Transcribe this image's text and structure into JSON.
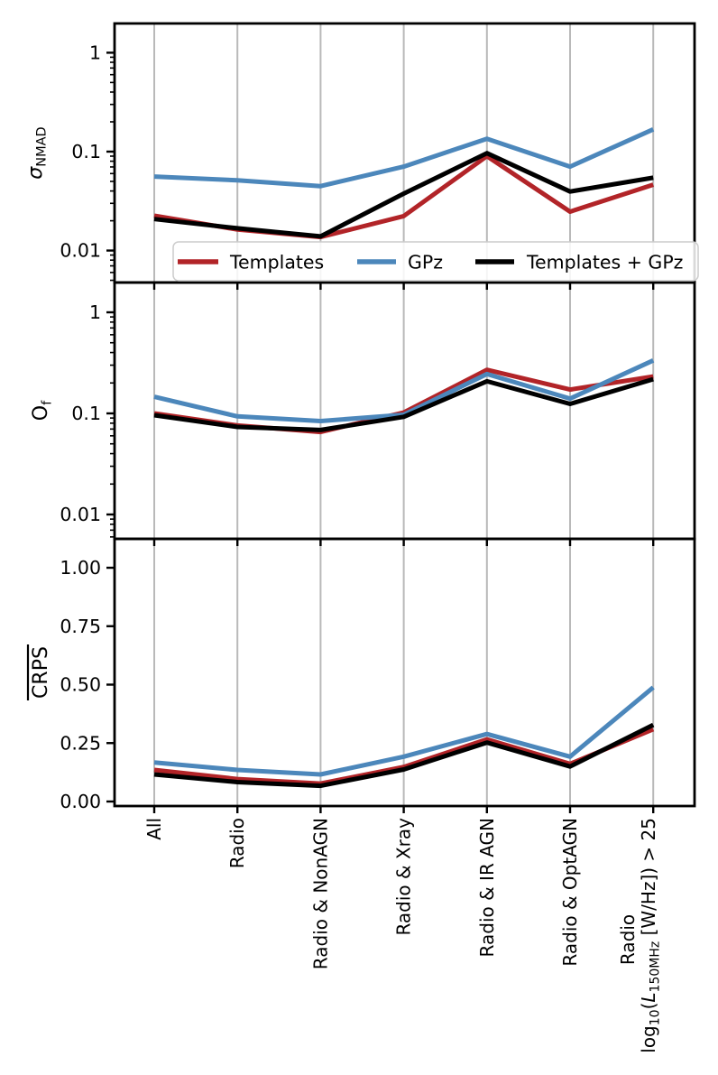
{
  "figure": {
    "background": "#ffffff",
    "description": "Three stacked line-chart panels comparing photometric redshift quality metrics for three methods across radio-galaxy subsamples"
  },
  "chart_data": {
    "type": "line",
    "categories": [
      "All",
      "Radio",
      "Radio & NonAGN",
      "Radio & Xray",
      "Radio & IR AGN",
      "Radio & OptAGN",
      "Radio log10(L150MHz [W/Hz]) > 25"
    ],
    "last_category_lines": [
      [
        {
          "t": "Radio"
        }
      ],
      [
        {
          "t": "log"
        },
        {
          "t": "10",
          "s": 1
        },
        {
          "t": "("
        },
        {
          "t": "L",
          "i": 1
        },
        {
          "t": "150MHz",
          "s": 1
        },
        {
          "t": " [W/Hz]) > 25"
        }
      ]
    ],
    "legend": {
      "location": "lower center inside top panel",
      "entries": [
        {
          "label": "Templates",
          "color": "#b22428"
        },
        {
          "label": "GPz",
          "color": "#4c87bb"
        },
        {
          "label": "Templates + GPz",
          "color": "#000000"
        }
      ]
    },
    "colors": {
      "templates": "#b22428",
      "gpz": "#4c87bb",
      "templates_gpz": "#000000",
      "grid": "#b9b9b9",
      "spine": "#000000",
      "legend_border": "#cccccc"
    },
    "panels": [
      {
        "ylabel": "sigma_NMAD",
        "ylabel_parts": [
          {
            "t": "σ",
            "i": 1
          },
          {
            "t": "NMAD",
            "s": 1
          }
        ],
        "yscale": "log",
        "ylim": [
          0.00475,
          1.975
        ],
        "yticks": [
          {
            "v": 1,
            "label": "1"
          },
          {
            "v": 0.1,
            "label": "0.1"
          },
          {
            "v": 0.01,
            "label": "0.01"
          }
        ],
        "grid": "vertical",
        "series": [
          {
            "name": "Templates",
            "values": [
              0.0225,
              0.0163,
              0.0137,
              0.0223,
              0.09,
              0.0247,
              0.0463
            ]
          },
          {
            "name": "GPz",
            "values": [
              0.056,
              0.0512,
              0.0448,
              0.0705,
              0.135,
              0.0705,
              0.168
            ]
          },
          {
            "name": "Templates + GPz",
            "values": [
              0.0208,
              0.0168,
              0.0139,
              0.0376,
              0.0965,
              0.0395,
              0.0545
            ]
          }
        ]
      },
      {
        "ylabel": "O_f",
        "ylabel_parts": [
          {
            "t": "O"
          },
          {
            "t": "f",
            "s": 1
          }
        ],
        "yscale": "log",
        "ylim": [
          0.00574,
          1.971
        ],
        "yticks": [
          {
            "v": 1,
            "label": "1"
          },
          {
            "v": 0.1,
            "label": "0.1"
          },
          {
            "v": 0.01,
            "label": "0.01"
          }
        ],
        "grid": "vertical",
        "series": [
          {
            "name": "Templates",
            "values": [
              0.1,
              0.076,
              0.0655,
              0.102,
              0.27,
              0.172,
              0.232
            ]
          },
          {
            "name": "GPz",
            "values": [
              0.146,
              0.0935,
              0.084,
              0.097,
              0.245,
              0.14,
              0.334
            ]
          },
          {
            "name": "Templates + GPz",
            "values": [
              0.096,
              0.0735,
              0.0685,
              0.0925,
              0.208,
              0.124,
              0.218
            ]
          }
        ]
      },
      {
        "ylabel": "mean CRPS (overline)",
        "ylabel_parts": [
          {
            "t": "CRPS",
            "o": 1
          }
        ],
        "yscale": "linear",
        "ylim": [
          -0.0193,
          1.1236
        ],
        "yticks": [
          {
            "v": 0.0,
            "label": "0.00"
          },
          {
            "v": 0.25,
            "label": "0.25"
          },
          {
            "v": 0.5,
            "label": "0.50"
          },
          {
            "v": 0.75,
            "label": "0.75"
          },
          {
            "v": 1.0,
            "label": "1.00"
          }
        ],
        "grid": "vertical",
        "series": [
          {
            "name": "Templates",
            "values": [
              0.135,
              0.096,
              0.077,
              0.148,
              0.266,
              0.161,
              0.309
            ]
          },
          {
            "name": "GPz",
            "values": [
              0.167,
              0.135,
              0.116,
              0.192,
              0.289,
              0.192,
              0.488
            ]
          },
          {
            "name": "Templates + GPz",
            "values": [
              0.116,
              0.083,
              0.067,
              0.137,
              0.252,
              0.15,
              0.328
            ]
          }
        ]
      }
    ]
  }
}
